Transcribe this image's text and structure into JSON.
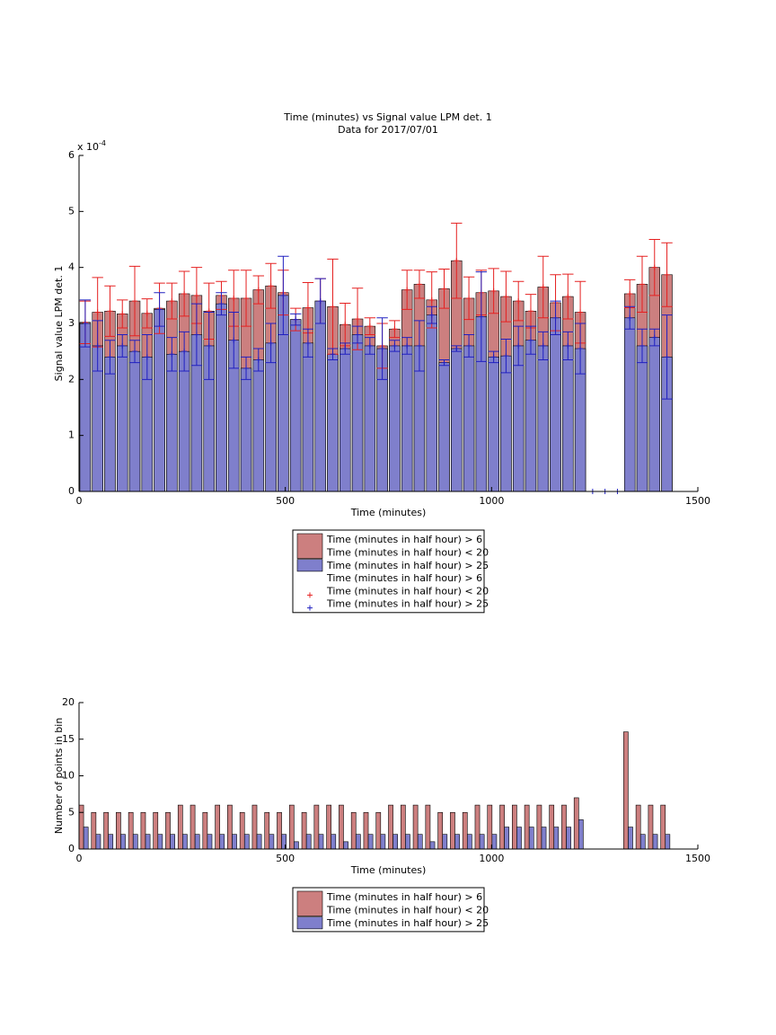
{
  "chart_data": [
    {
      "type": "bar",
      "barmode": "overlay",
      "title": "Time (minutes) vs Signal value LPM det. 1",
      "subtitle": "Data for 2017/07/01",
      "xlabel": "Time (minutes)",
      "ylabel": "Signal value LPM det. 1",
      "y_multiplier": {
        "base": "x 10",
        "exponent": "-4"
      },
      "x": [
        15,
        45,
        75,
        105,
        135,
        165,
        195,
        225,
        255,
        285,
        315,
        345,
        375,
        405,
        435,
        465,
        495,
        525,
        555,
        585,
        615,
        645,
        675,
        705,
        735,
        765,
        795,
        825,
        855,
        885,
        915,
        945,
        975,
        1005,
        1035,
        1065,
        1095,
        1125,
        1155,
        1185,
        1215,
        1245,
        1275,
        1305,
        1335,
        1365,
        1395,
        1425
      ],
      "xlim": [
        0,
        1500
      ],
      "xticks": [
        0,
        500,
        1000,
        1500
      ],
      "ylim": [
        0,
        6
      ],
      "yticks": [
        0,
        1,
        2,
        3,
        4,
        5,
        6
      ],
      "legend": "south outside",
      "series": [
        {
          "name": [
            "Time (minutes in half hour) > 6",
            "Time (minutes in half hour) < 20"
          ],
          "color": "#cc7f7f",
          "values": [
            3.02,
            3.2,
            3.22,
            3.17,
            3.4,
            3.18,
            3.27,
            3.4,
            3.53,
            3.5,
            3.22,
            3.5,
            3.45,
            3.45,
            3.6,
            3.67,
            3.55,
            3.07,
            3.28,
            3.4,
            3.3,
            2.98,
            3.08,
            2.95,
            2.6,
            2.9,
            3.6,
            3.7,
            3.42,
            3.62,
            4.12,
            3.45,
            3.55,
            3.58,
            3.48,
            3.4,
            3.22,
            3.65,
            3.37,
            3.48,
            3.2,
            null,
            null,
            null,
            3.53,
            3.7,
            4.0,
            3.87
          ],
          "errors": [
            0.38,
            0.62,
            0.45,
            0.25,
            0.62,
            0.26,
            0.45,
            0.32,
            0.4,
            0.5,
            0.5,
            0.25,
            0.5,
            0.5,
            0.25,
            0.4,
            0.4,
            0.2,
            0.45,
            0.4,
            0.85,
            0.38,
            0.55,
            0.15,
            0.4,
            0.15,
            0.35,
            0.25,
            0.5,
            0.35,
            0.67,
            0.38,
            0.4,
            0.4,
            0.45,
            0.35,
            0.3,
            0.55,
            0.5,
            0.4,
            0.55,
            null,
            null,
            null,
            0.25,
            0.5,
            0.5,
            0.57
          ],
          "errorbar_name": [
            "Time (minutes in half hour) > 6",
            "Time (minutes in half hour) < 20"
          ],
          "errorbar_color": "#e52020"
        },
        {
          "name": [
            "Time (minutes in half hour) > 25"
          ],
          "color": "#7f7fcc",
          "values": [
            3.0,
            2.6,
            2.4,
            2.6,
            2.5,
            2.4,
            3.25,
            2.45,
            2.5,
            2.8,
            2.6,
            3.35,
            2.7,
            2.2,
            2.35,
            2.65,
            3.5,
            3.07,
            2.65,
            3.4,
            2.45,
            2.55,
            2.8,
            2.6,
            2.55,
            2.6,
            2.6,
            2.6,
            3.15,
            2.3,
            2.55,
            2.6,
            3.12,
            2.4,
            2.42,
            2.6,
            2.7,
            2.6,
            3.1,
            2.6,
            2.55,
            0,
            0,
            0,
            3.1,
            2.6,
            2.75,
            2.4
          ],
          "errors": [
            0.42,
            0.45,
            0.3,
            0.2,
            0.2,
            0.4,
            0.3,
            0.3,
            0.35,
            0.55,
            0.6,
            0.2,
            0.5,
            0.2,
            0.2,
            0.35,
            0.7,
            0.1,
            0.25,
            0.4,
            0.1,
            0.1,
            0.15,
            0.15,
            0.55,
            0.1,
            0.15,
            0.45,
            0.15,
            0.05,
            0.05,
            0.2,
            0.8,
            0.1,
            0.3,
            0.35,
            0.25,
            0.25,
            0.3,
            0.25,
            0.45,
            0,
            0,
            0,
            0.2,
            0.3,
            0.15,
            0.75
          ],
          "errorbar_name": [
            "Time (minutes in half hour) > 25"
          ],
          "errorbar_color": "#2020c0"
        }
      ]
    },
    {
      "type": "bar",
      "barmode": "group",
      "xlabel": "Time (minutes)",
      "ylabel": "Number of points in bin",
      "x": [
        15,
        45,
        75,
        105,
        135,
        165,
        195,
        225,
        255,
        285,
        315,
        345,
        375,
        405,
        435,
        465,
        495,
        525,
        555,
        585,
        615,
        645,
        675,
        705,
        735,
        765,
        795,
        825,
        855,
        885,
        915,
        945,
        975,
        1005,
        1035,
        1065,
        1095,
        1125,
        1155,
        1185,
        1215,
        1245,
        1275,
        1305,
        1335,
        1365,
        1395,
        1425
      ],
      "xlim": [
        0,
        1500
      ],
      "xticks": [
        0,
        500,
        1000,
        1500
      ],
      "ylim": [
        0,
        20
      ],
      "yticks": [
        0,
        5,
        10,
        15,
        20
      ],
      "legend": "south outside",
      "series": [
        {
          "name": [
            "Time (minutes in half hour) > 6",
            "Time (minutes in half hour) < 20"
          ],
          "color": "#cc7f7f",
          "values": [
            6,
            5,
            5,
            5,
            5,
            5,
            5,
            5,
            6,
            6,
            5,
            6,
            6,
            5,
            6,
            5,
            5,
            6,
            5,
            6,
            6,
            6,
            5,
            5,
            5,
            6,
            6,
            6,
            6,
            5,
            5,
            5,
            6,
            6,
            6,
            6,
            6,
            6,
            6,
            6,
            7,
            0,
            0,
            0,
            16,
            6,
            6,
            6
          ]
        },
        {
          "name": [
            "Time (minutes in half hour) > 25"
          ],
          "color": "#7f7fcc",
          "values": [
            3,
            2,
            2,
            2,
            2,
            2,
            2,
            2,
            2,
            2,
            2,
            2,
            2,
            2,
            2,
            2,
            2,
            1,
            2,
            2,
            2,
            1,
            2,
            2,
            2,
            2,
            2,
            2,
            1,
            2,
            2,
            2,
            2,
            2,
            3,
            3,
            3,
            3,
            3,
            3,
            4,
            0,
            0,
            0,
            3,
            2,
            2,
            2
          ]
        }
      ]
    }
  ]
}
